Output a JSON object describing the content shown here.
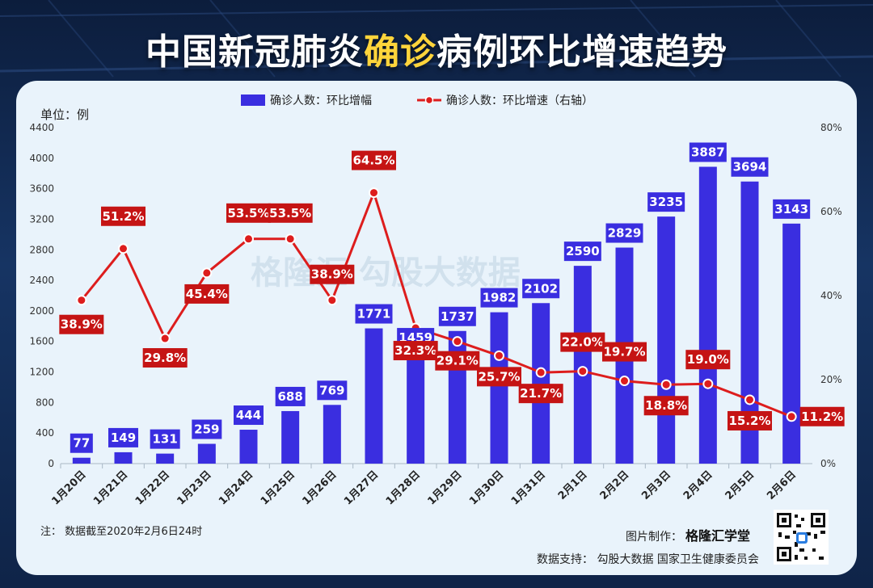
{
  "header": {
    "title_pre": "中国新冠肺炎",
    "title_hl": "确诊",
    "title_post": "病例环比增速趋势"
  },
  "unit_label": "单位：例",
  "note": "注： 数据截至2020年2月6日24时",
  "credit": {
    "label": "图片制作：",
    "brand": "格隆汇学堂"
  },
  "source": "数据支持： 勾股大数据  国家卫生健康委员会",
  "watermark": "格隆汇  勾股大数据",
  "colors": {
    "bar": "#3a2ee0",
    "line": "#dd1d1d",
    "label_bar_bg": "#3a2ee0",
    "label_line_bg": "#c51414"
  },
  "chart_data": {
    "type": "bar+line",
    "title": "中国新冠肺炎确诊病例环比增速趋势",
    "categories": [
      "1月20日",
      "1月21日",
      "1月22日",
      "1月23日",
      "1月24日",
      "1月25日",
      "1月26日",
      "1月27日",
      "1月28日",
      "1月29日",
      "1月30日",
      "1月31日",
      "2月1日",
      "2月2日",
      "2月3日",
      "2月4日",
      "2月5日",
      "2月6日"
    ],
    "series": [
      {
        "name": "确诊人数：环比增幅",
        "type": "bar",
        "axis": "left",
        "values": [
          77,
          149,
          131,
          259,
          444,
          688,
          769,
          1771,
          1459,
          1737,
          1982,
          2102,
          2590,
          2829,
          3235,
          3887,
          3694,
          3143
        ]
      },
      {
        "name": "确诊人数：环比增速（右轴）",
        "type": "line",
        "axis": "right",
        "values": [
          38.9,
          51.2,
          29.8,
          45.4,
          53.5,
          53.5,
          38.9,
          64.5,
          32.3,
          29.1,
          25.7,
          21.7,
          22.0,
          19.7,
          18.8,
          19.0,
          15.2,
          11.2
        ],
        "labels": [
          "38.9%",
          "51.2%",
          "29.8%",
          "45.4%",
          "53.5%",
          "53.5%",
          "38.9%",
          "64.5%",
          "32.3%",
          "29.1%",
          "25.7%",
          "21.7%",
          "22.0%",
          "19.7%",
          "18.8%",
          "19.0%",
          "15.2%",
          "11.2%"
        ]
      }
    ],
    "y_left": {
      "min": 0,
      "max": 4400,
      "ticks": [
        0,
        400,
        800,
        1200,
        1600,
        2000,
        2400,
        2800,
        3200,
        3600,
        4000,
        4400
      ]
    },
    "y_right": {
      "min": 0,
      "max": 80,
      "ticks": [
        "0%",
        "20%",
        "40%",
        "60%",
        "80%"
      ]
    },
    "legend_position": "top-center"
  }
}
